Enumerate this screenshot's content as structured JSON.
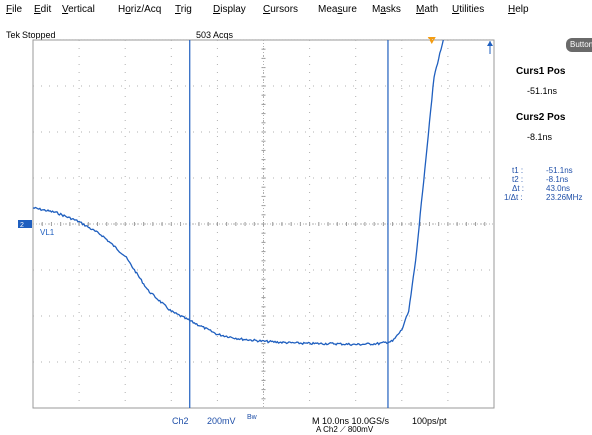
{
  "menu": [
    {
      "label": "File",
      "u": "F",
      "rest": "ile"
    },
    {
      "label": "Edit",
      "u": "E",
      "rest": "dit"
    },
    {
      "label": "Vertical",
      "u": "V",
      "rest": "ertical"
    },
    {
      "label": "Horiz/Acq",
      "pre": "H",
      "u": "o",
      "rest": "riz/Acq"
    },
    {
      "label": "Trig",
      "u": "T",
      "rest": "rig"
    },
    {
      "label": "Display",
      "u": "D",
      "rest": "isplay"
    },
    {
      "label": "Cursors",
      "u": "C",
      "rest": "ursors"
    },
    {
      "label": "Measure",
      "pre": "Mea",
      "u": "s",
      "rest": "ure"
    },
    {
      "label": "Masks",
      "pre": "M",
      "u": "a",
      "rest": "sks"
    },
    {
      "label": "Math",
      "u": "M",
      "rest": "ath"
    },
    {
      "label": "Utilities",
      "u": "U",
      "rest": "tilities"
    },
    {
      "label": "Help",
      "u": "H",
      "rest": "elp"
    }
  ],
  "status": {
    "brand": "Tek",
    "state": "Stopped",
    "acqs": "503 Acqs"
  },
  "side": {
    "buttons_label": "Buttons",
    "curs1_title": "Curs1 Pos",
    "curs1_val": "-51.1ns",
    "curs2_title": "Curs2 Pos",
    "curs2_val": "-8.1ns",
    "readout": [
      {
        "k": "t1 :",
        "v": "-51.1ns"
      },
      {
        "k": "t2 :",
        "v": "-8.1ns"
      },
      {
        "k": "Δt :",
        "v": "43.0ns"
      },
      {
        "k": "1/Δt :",
        "v": "23.26MHz"
      }
    ]
  },
  "waveform_label": "VL1",
  "bottom": {
    "channel": "Ch2",
    "volts_div": "200mV",
    "bw": "Bw",
    "timebase": "M 10.0ns 10.0GS/s",
    "res": "100ps/pt",
    "trigger": "A  Ch2  ⟋  800mV"
  },
  "colors": {
    "trace": "#1f5fbf",
    "cursor": "#1f5fbf",
    "trigger": "#f39c12"
  },
  "chart_data": {
    "type": "line",
    "title": "",
    "xlabel": "",
    "ylabel": "",
    "x_units": "divisions",
    "y_units": "divisions",
    "xlim": [
      0,
      10
    ],
    "ylim": [
      -4,
      4
    ],
    "grid": true,
    "series": [
      {
        "x": [
          0,
          0.5,
          1,
          1.5,
          2,
          2.5,
          3,
          3.5,
          4,
          4.5,
          5,
          5.5,
          6,
          6.5,
          7,
          7.5,
          7.8,
          8.0,
          8.15,
          8.3,
          8.5,
          8.7,
          8.9
        ],
        "y": [
          0.35,
          0.25,
          0.05,
          -0.25,
          -0.7,
          -1.45,
          -1.9,
          -2.15,
          -2.4,
          -2.5,
          -2.55,
          -2.58,
          -2.6,
          -2.6,
          -2.62,
          -2.6,
          -2.55,
          -2.3,
          -1.9,
          -0.8,
          1.2,
          3.2,
          4
        ]
      }
    ],
    "cursors_div": [
      3.4,
      7.7
    ],
    "trigger_div": 8.65
  }
}
